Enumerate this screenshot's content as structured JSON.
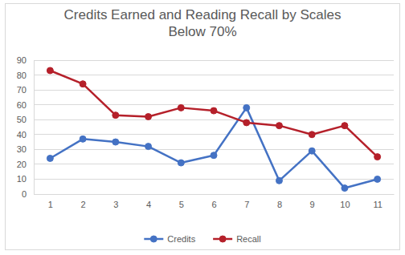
{
  "chart_data": {
    "type": "line",
    "title": "Credits Earned and Reading Recall by Scales Below 70%",
    "categories": [
      1,
      2,
      3,
      4,
      5,
      6,
      7,
      8,
      9,
      10,
      11
    ],
    "series": [
      {
        "name": "Credits",
        "color": "#4472c4",
        "marker": "circle",
        "values": [
          24,
          37,
          35,
          32,
          21,
          26,
          58,
          9,
          29,
          4,
          10
        ]
      },
      {
        "name": "Recall",
        "color": "#b5202a",
        "marker": "circle",
        "values": [
          83,
          74,
          53,
          52,
          58,
          56,
          48,
          46,
          40,
          46,
          25
        ]
      }
    ],
    "ylim": [
      0,
      90
    ],
    "yticks": [
      0,
      10,
      20,
      30,
      40,
      50,
      60,
      70,
      80,
      90
    ],
    "grid": true,
    "legend": "bottom"
  }
}
